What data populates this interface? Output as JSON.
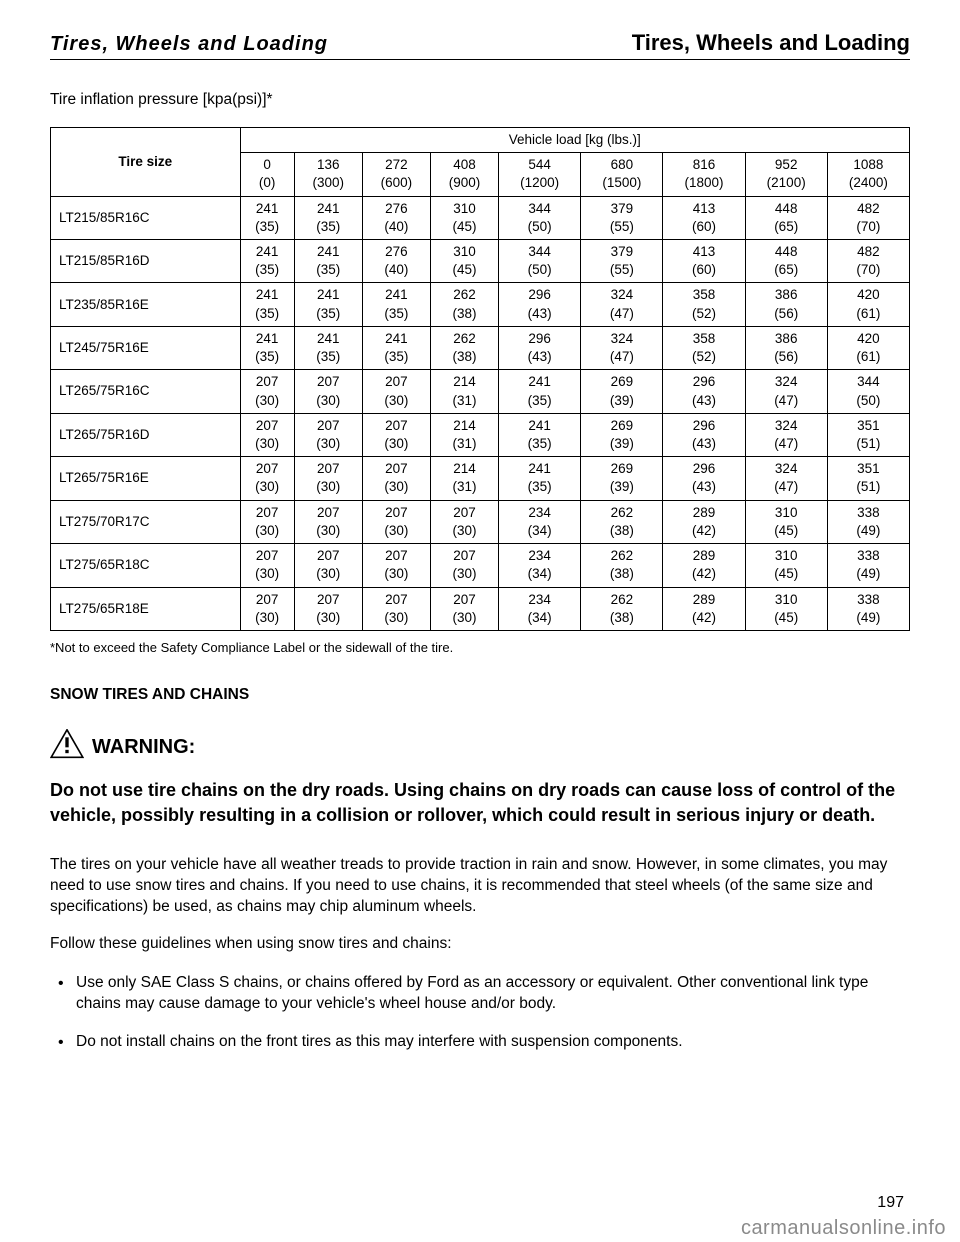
{
  "header": {
    "section_title_left": "Tires, Wheels and Loading",
    "section_heading_right": "Tires, Wheels and Loading"
  },
  "intro": {
    "p1": "The tires on your vehicle have all weather treads to provide traction in rain and snow. However, in some climates, you may need to use snow tires and chains. If you need to use chains, it is recommended that steel wheels (of the same size and specifications) be used, as chains may chip aluminum wheels.",
    "p2": "Follow these guidelines when using snow tires and chains:"
  },
  "table": {
    "caption": "Tire inflation pressure [kpa(psi)]*",
    "tire_size_header": "Tire size",
    "load_header": "Vehicle load [kg (lbs.)]",
    "load_columns": [
      "0 (0)",
      "136 (300)",
      "272 (600)",
      "408 (900)",
      "544 (1200)",
      "680 (1500)",
      "816 (1800)",
      "952 (2100)",
      "1088 (2400)"
    ],
    "rows": [
      {
        "size": "LT215/85R16C",
        "vals": [
          "241 (35)",
          "241 (35)",
          "276 (40)",
          "310 (45)",
          "344 (50)",
          "379 (55)",
          "413 (60)",
          "448 (65)",
          "482 (70)"
        ]
      },
      {
        "size": "LT215/85R16D",
        "vals": [
          "241 (35)",
          "241 (35)",
          "276 (40)",
          "310 (45)",
          "344 (50)",
          "379 (55)",
          "413 (60)",
          "448 (65)",
          "482 (70)"
        ]
      },
      {
        "size": "LT235/85R16E",
        "vals": [
          "241 (35)",
          "241 (35)",
          "241 (35)",
          "262 (38)",
          "296 (43)",
          "324 (47)",
          "358 (52)",
          "386 (56)",
          "420 (61)"
        ]
      },
      {
        "size": "LT245/75R16E",
        "vals": [
          "241 (35)",
          "241 (35)",
          "241 (35)",
          "262 (38)",
          "296 (43)",
          "324 (47)",
          "358 (52)",
          "386 (56)",
          "420 (61)"
        ]
      },
      {
        "size": "LT265/75R16C",
        "vals": [
          "207 (30)",
          "207 (30)",
          "207 (30)",
          "214 (31)",
          "241 (35)",
          "269 (39)",
          "296 (43)",
          "324 (47)",
          "344 (50)"
        ]
      },
      {
        "size": "LT265/75R16D",
        "vals": [
          "207 (30)",
          "207 (30)",
          "207 (30)",
          "214 (31)",
          "241 (35)",
          "269 (39)",
          "296 (43)",
          "324 (47)",
          "351 (51)"
        ]
      },
      {
        "size": "LT265/75R16E",
        "vals": [
          "207 (30)",
          "207 (30)",
          "207 (30)",
          "214 (31)",
          "241 (35)",
          "269 (39)",
          "296 (43)",
          "324 (47)",
          "351 (51)"
        ]
      },
      {
        "size": "LT275/70R17C",
        "vals": [
          "207 (30)",
          "207 (30)",
          "207 (30)",
          "207 (30)",
          "234 (34)",
          "262 (38)",
          "289 (42)",
          "310 (45)",
          "338 (49)"
        ]
      },
      {
        "size": "LT275/65R18C",
        "vals": [
          "207 (30)",
          "207 (30)",
          "207 (30)",
          "207 (30)",
          "234 (34)",
          "262 (38)",
          "289 (42)",
          "310 (45)",
          "338 (49)"
        ]
      },
      {
        "size": "LT275/65R18E",
        "vals": [
          "207 (30)",
          "207 (30)",
          "207 (30)",
          "207 (30)",
          "234 (34)",
          "262 (38)",
          "289 (42)",
          "310 (45)",
          "338 (49)"
        ]
      }
    ],
    "footnote": "*Not to exceed the Safety Compliance Label or the sidewall of the tire."
  },
  "snow_section": {
    "heading": "SNOW TIRES AND CHAINS",
    "warning_label": "WARNING:",
    "warning_text": "Do not use tire chains on the dry roads. Using chains on dry roads can cause loss of control of the vehicle, possibly resulting in a collision or rollover, which could result in serious injury or death.",
    "bullets": [
      "Use only SAE Class S chains, or chains offered by Ford as an accessory or equivalent. Other conventional link type chains may cause damage to your vehicle's wheel house and/or body.",
      "Do not install chains on the front tires as this may interfere with suspension components."
    ]
  },
  "page_number": "197",
  "watermark": "carmanualsonline.info"
}
